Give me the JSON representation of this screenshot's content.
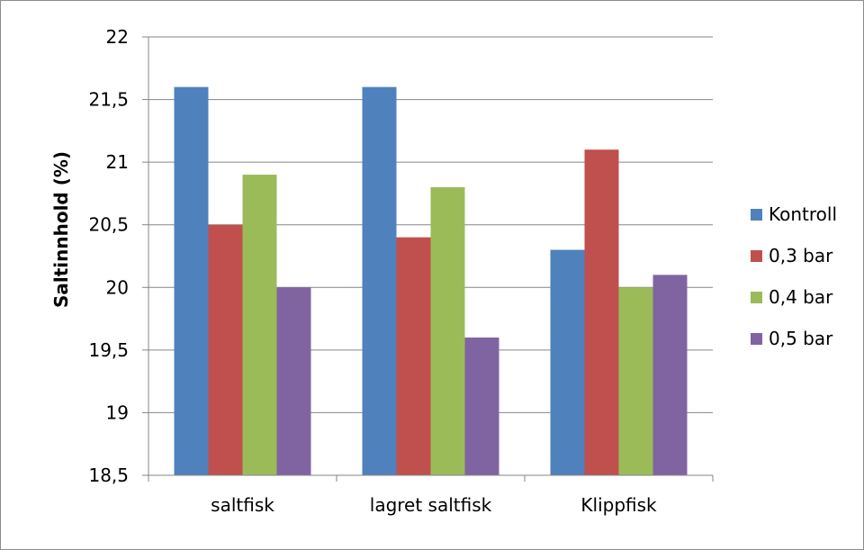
{
  "chart_data": {
    "type": "bar",
    "title": "",
    "xlabel": "",
    "ylabel": "Saltinnhold (%)",
    "ylim": [
      18.5,
      22
    ],
    "yticks": [
      "18,5",
      "19",
      "19,5",
      "20",
      "20,5",
      "21",
      "21,5",
      "22"
    ],
    "ytick_values": [
      18.5,
      19,
      19.5,
      20,
      20.5,
      21,
      21.5,
      22
    ],
    "grid": true,
    "legend_position": "right",
    "categories": [
      "saltfisk",
      "lagret saltfisk",
      "Klippfisk"
    ],
    "series": [
      {
        "name": "Kontroll",
        "color": "#4f81bd",
        "values": [
          21.6,
          21.6,
          20.3
        ]
      },
      {
        "name": "0,3 bar",
        "color": "#c0504d",
        "values": [
          20.5,
          20.4,
          21.1
        ]
      },
      {
        "name": "0,4 bar",
        "color": "#9bbb59",
        "values": [
          20.9,
          20.8,
          20.0
        ]
      },
      {
        "name": "0,5 bar",
        "color": "#8064a2",
        "values": [
          20.0,
          19.6,
          20.1
        ]
      }
    ]
  }
}
